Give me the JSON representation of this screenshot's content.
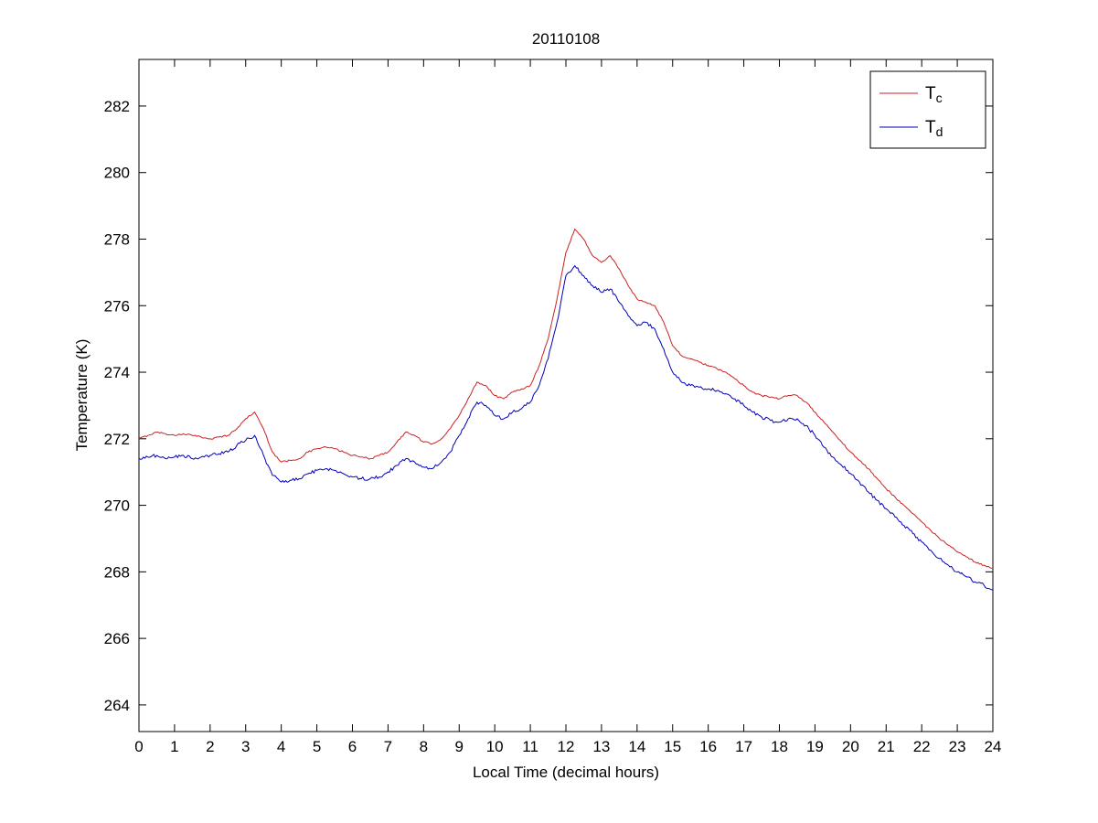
{
  "figure": {
    "background": "#ffffff",
    "axes_background": "#ffffff",
    "axis_color": "#000000",
    "tick_label_color": "#000000"
  },
  "chart_data": {
    "type": "line",
    "title": "20110108",
    "xlabel": "Local Time (decimal hours)",
    "ylabel": "Temperature (K)",
    "xlim": [
      0,
      24
    ],
    "ylim": [
      263.2,
      283.4
    ],
    "xticks": [
      0,
      1,
      2,
      3,
      4,
      5,
      6,
      7,
      8,
      9,
      10,
      11,
      12,
      13,
      14,
      15,
      16,
      17,
      18,
      19,
      20,
      21,
      22,
      23,
      24
    ],
    "yticks": [
      264,
      266,
      268,
      270,
      272,
      274,
      276,
      278,
      280,
      282
    ],
    "grid": false,
    "legend_position": "top-right",
    "x": [
      0,
      0.25,
      0.5,
      0.75,
      1,
      1.25,
      1.5,
      1.75,
      2,
      2.25,
      2.5,
      2.75,
      3,
      3.25,
      3.5,
      3.75,
      4,
      4.25,
      4.5,
      4.75,
      5,
      5.25,
      5.5,
      5.75,
      6,
      6.25,
      6.5,
      6.75,
      7,
      7.25,
      7.5,
      7.75,
      8,
      8.25,
      8.5,
      8.75,
      9,
      9.25,
      9.5,
      9.75,
      10,
      10.25,
      10.5,
      10.75,
      11,
      11.25,
      11.5,
      11.75,
      12,
      12.25,
      12.5,
      12.75,
      13,
      13.25,
      13.5,
      13.75,
      14,
      14.25,
      14.5,
      14.75,
      15,
      15.25,
      15.5,
      15.75,
      16,
      16.25,
      16.5,
      16.75,
      17,
      17.25,
      17.5,
      17.75,
      18,
      18.25,
      18.5,
      18.75,
      19,
      19.25,
      19.5,
      19.75,
      20,
      20.25,
      20.5,
      20.75,
      21,
      21.25,
      21.5,
      21.75,
      22,
      22.25,
      22.5,
      22.75,
      23,
      23.25,
      23.5,
      23.75,
      24
    ],
    "series": [
      {
        "name": "T_c",
        "label_main": "T",
        "label_sub": "c",
        "color": "#cc2222",
        "noise": 0.025,
        "values": [
          272.0,
          272.1,
          272.2,
          272.15,
          272.1,
          272.15,
          272.1,
          272.05,
          272.0,
          272.05,
          272.1,
          272.3,
          272.6,
          272.8,
          272.3,
          271.6,
          271.3,
          271.35,
          271.4,
          271.6,
          271.7,
          271.75,
          271.7,
          271.6,
          271.5,
          271.45,
          271.4,
          271.5,
          271.6,
          271.9,
          272.2,
          272.1,
          271.9,
          271.85,
          272.0,
          272.3,
          272.7,
          273.2,
          273.7,
          273.6,
          273.3,
          273.2,
          273.4,
          273.5,
          273.6,
          274.2,
          275.0,
          276.2,
          277.6,
          278.3,
          278.0,
          277.5,
          277.3,
          277.5,
          277.1,
          276.6,
          276.2,
          276.1,
          276.0,
          275.5,
          274.8,
          274.5,
          274.4,
          274.3,
          274.2,
          274.1,
          274.0,
          273.8,
          273.6,
          273.4,
          273.3,
          273.25,
          273.2,
          273.3,
          273.3,
          273.1,
          272.8,
          272.5,
          272.2,
          271.9,
          271.6,
          271.35,
          271.1,
          270.8,
          270.5,
          270.25,
          270.0,
          269.75,
          269.5,
          269.25,
          269.0,
          268.8,
          268.6,
          268.45,
          268.3,
          268.2,
          268.1
        ]
      },
      {
        "name": "T_d",
        "label_main": "T",
        "label_sub": "d",
        "color": "#0000bb",
        "noise": 0.05,
        "values": [
          271.4,
          271.45,
          271.5,
          271.4,
          271.45,
          271.5,
          271.4,
          271.45,
          271.5,
          271.55,
          271.6,
          271.8,
          271.95,
          272.1,
          271.5,
          270.9,
          270.7,
          270.75,
          270.8,
          270.95,
          271.05,
          271.1,
          271.05,
          270.95,
          270.85,
          270.8,
          270.8,
          270.85,
          271.0,
          271.2,
          271.4,
          271.3,
          271.15,
          271.1,
          271.3,
          271.6,
          272.1,
          272.6,
          273.1,
          273.0,
          272.7,
          272.6,
          272.8,
          272.9,
          273.1,
          273.6,
          274.4,
          275.5,
          276.9,
          277.2,
          276.9,
          276.6,
          276.4,
          276.5,
          276.1,
          275.7,
          275.4,
          275.5,
          275.3,
          274.7,
          274.0,
          273.7,
          273.6,
          273.55,
          273.5,
          273.45,
          273.35,
          273.2,
          273.0,
          272.8,
          272.65,
          272.55,
          272.5,
          272.6,
          272.6,
          272.4,
          272.1,
          271.75,
          271.45,
          271.2,
          270.95,
          270.7,
          270.4,
          270.15,
          269.9,
          269.65,
          269.4,
          269.15,
          268.9,
          268.65,
          268.4,
          268.2,
          268.0,
          267.85,
          267.7,
          267.6,
          267.45
        ]
      }
    ]
  }
}
